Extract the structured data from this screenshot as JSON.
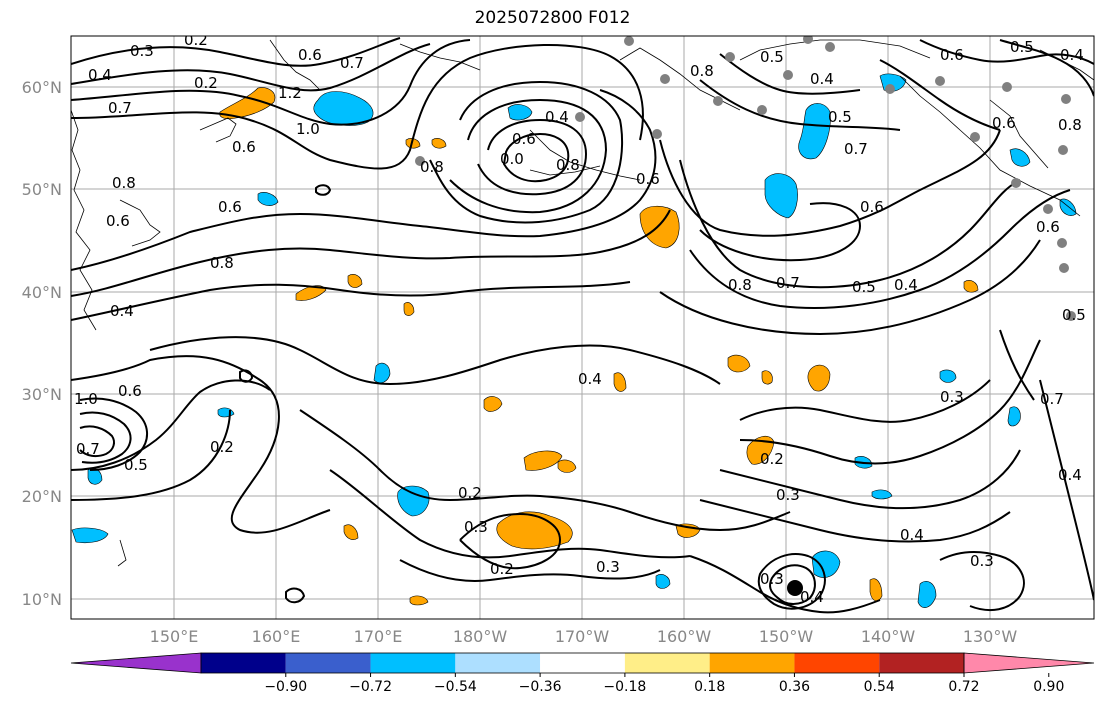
{
  "title": "2025072800 F012",
  "lat_labels": [
    "60°N",
    "50°N",
    "40°N",
    "30°N",
    "20°N",
    "10°N"
  ],
  "lon_labels": [
    "150°E",
    "160°E",
    "170°E",
    "180°W",
    "170°W",
    "160°W",
    "150°W",
    "140°W",
    "130°W"
  ],
  "contour_labels": [
    "0.2",
    "0.3",
    "0.4",
    "0.5",
    "0.6",
    "0.7",
    "0.8",
    "1.0",
    "1.2"
  ],
  "colorbar": {
    "tick_labels": [
      "−0.90",
      "−0.72",
      "−0.54",
      "−0.36",
      "−0.18",
      "0.18",
      "0.36",
      "0.54",
      "0.72",
      "0.90"
    ],
    "colors": [
      "#9932CC",
      "#00008B",
      "#3A5FCD",
      "#00BFFF",
      "#ADDFFF",
      "#FFFFFF",
      "#FFEE88",
      "#FFA500",
      "#FF4500",
      "#B22222",
      "#FF88AA"
    ]
  },
  "fill_colors": {
    "negative": "#00BFFF",
    "positive": "#FFA500",
    "coast": "#000000",
    "stations": "#808080"
  }
}
